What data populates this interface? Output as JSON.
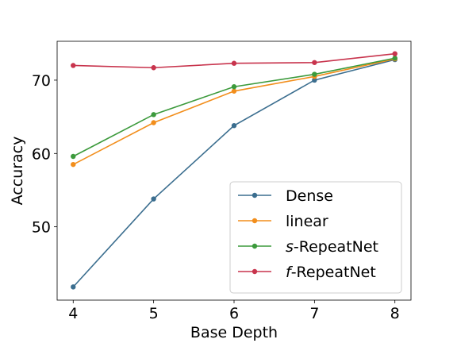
{
  "chart_data": {
    "type": "line",
    "xlabel": "Base Depth",
    "ylabel": "Accuracy",
    "x": [
      4,
      5,
      6,
      7,
      8
    ],
    "xlim": [
      3.8,
      8.2
    ],
    "ylim": [
      40,
      75.3
    ],
    "xticks": [
      "4",
      "5",
      "6",
      "7",
      "8"
    ],
    "yticks": [
      50,
      60,
      70
    ],
    "yticks_labels": [
      "50",
      "60",
      "70"
    ],
    "grid": false,
    "legend_position": "lower-right",
    "series": [
      {
        "name": "Dense",
        "name_prefix": "",
        "name_main": "Dense",
        "color": "#3b6e8f",
        "values": [
          41.8,
          53.8,
          63.8,
          70.0,
          72.8
        ]
      },
      {
        "name": "linear",
        "name_prefix": "",
        "name_main": "linear",
        "color": "#f28e1c",
        "values": [
          58.5,
          64.2,
          68.5,
          70.5,
          72.9
        ]
      },
      {
        "name": "s-RepeatNet",
        "name_prefix": "s",
        "name_main": "-RepeatNet",
        "color": "#3c9a3c",
        "values": [
          59.6,
          65.3,
          69.1,
          70.8,
          73.0
        ]
      },
      {
        "name": "f-RepeatNet",
        "name_prefix": "f",
        "name_main": "-RepeatNet",
        "color": "#c8344d",
        "values": [
          72.0,
          71.7,
          72.3,
          72.4,
          73.6
        ]
      }
    ]
  }
}
